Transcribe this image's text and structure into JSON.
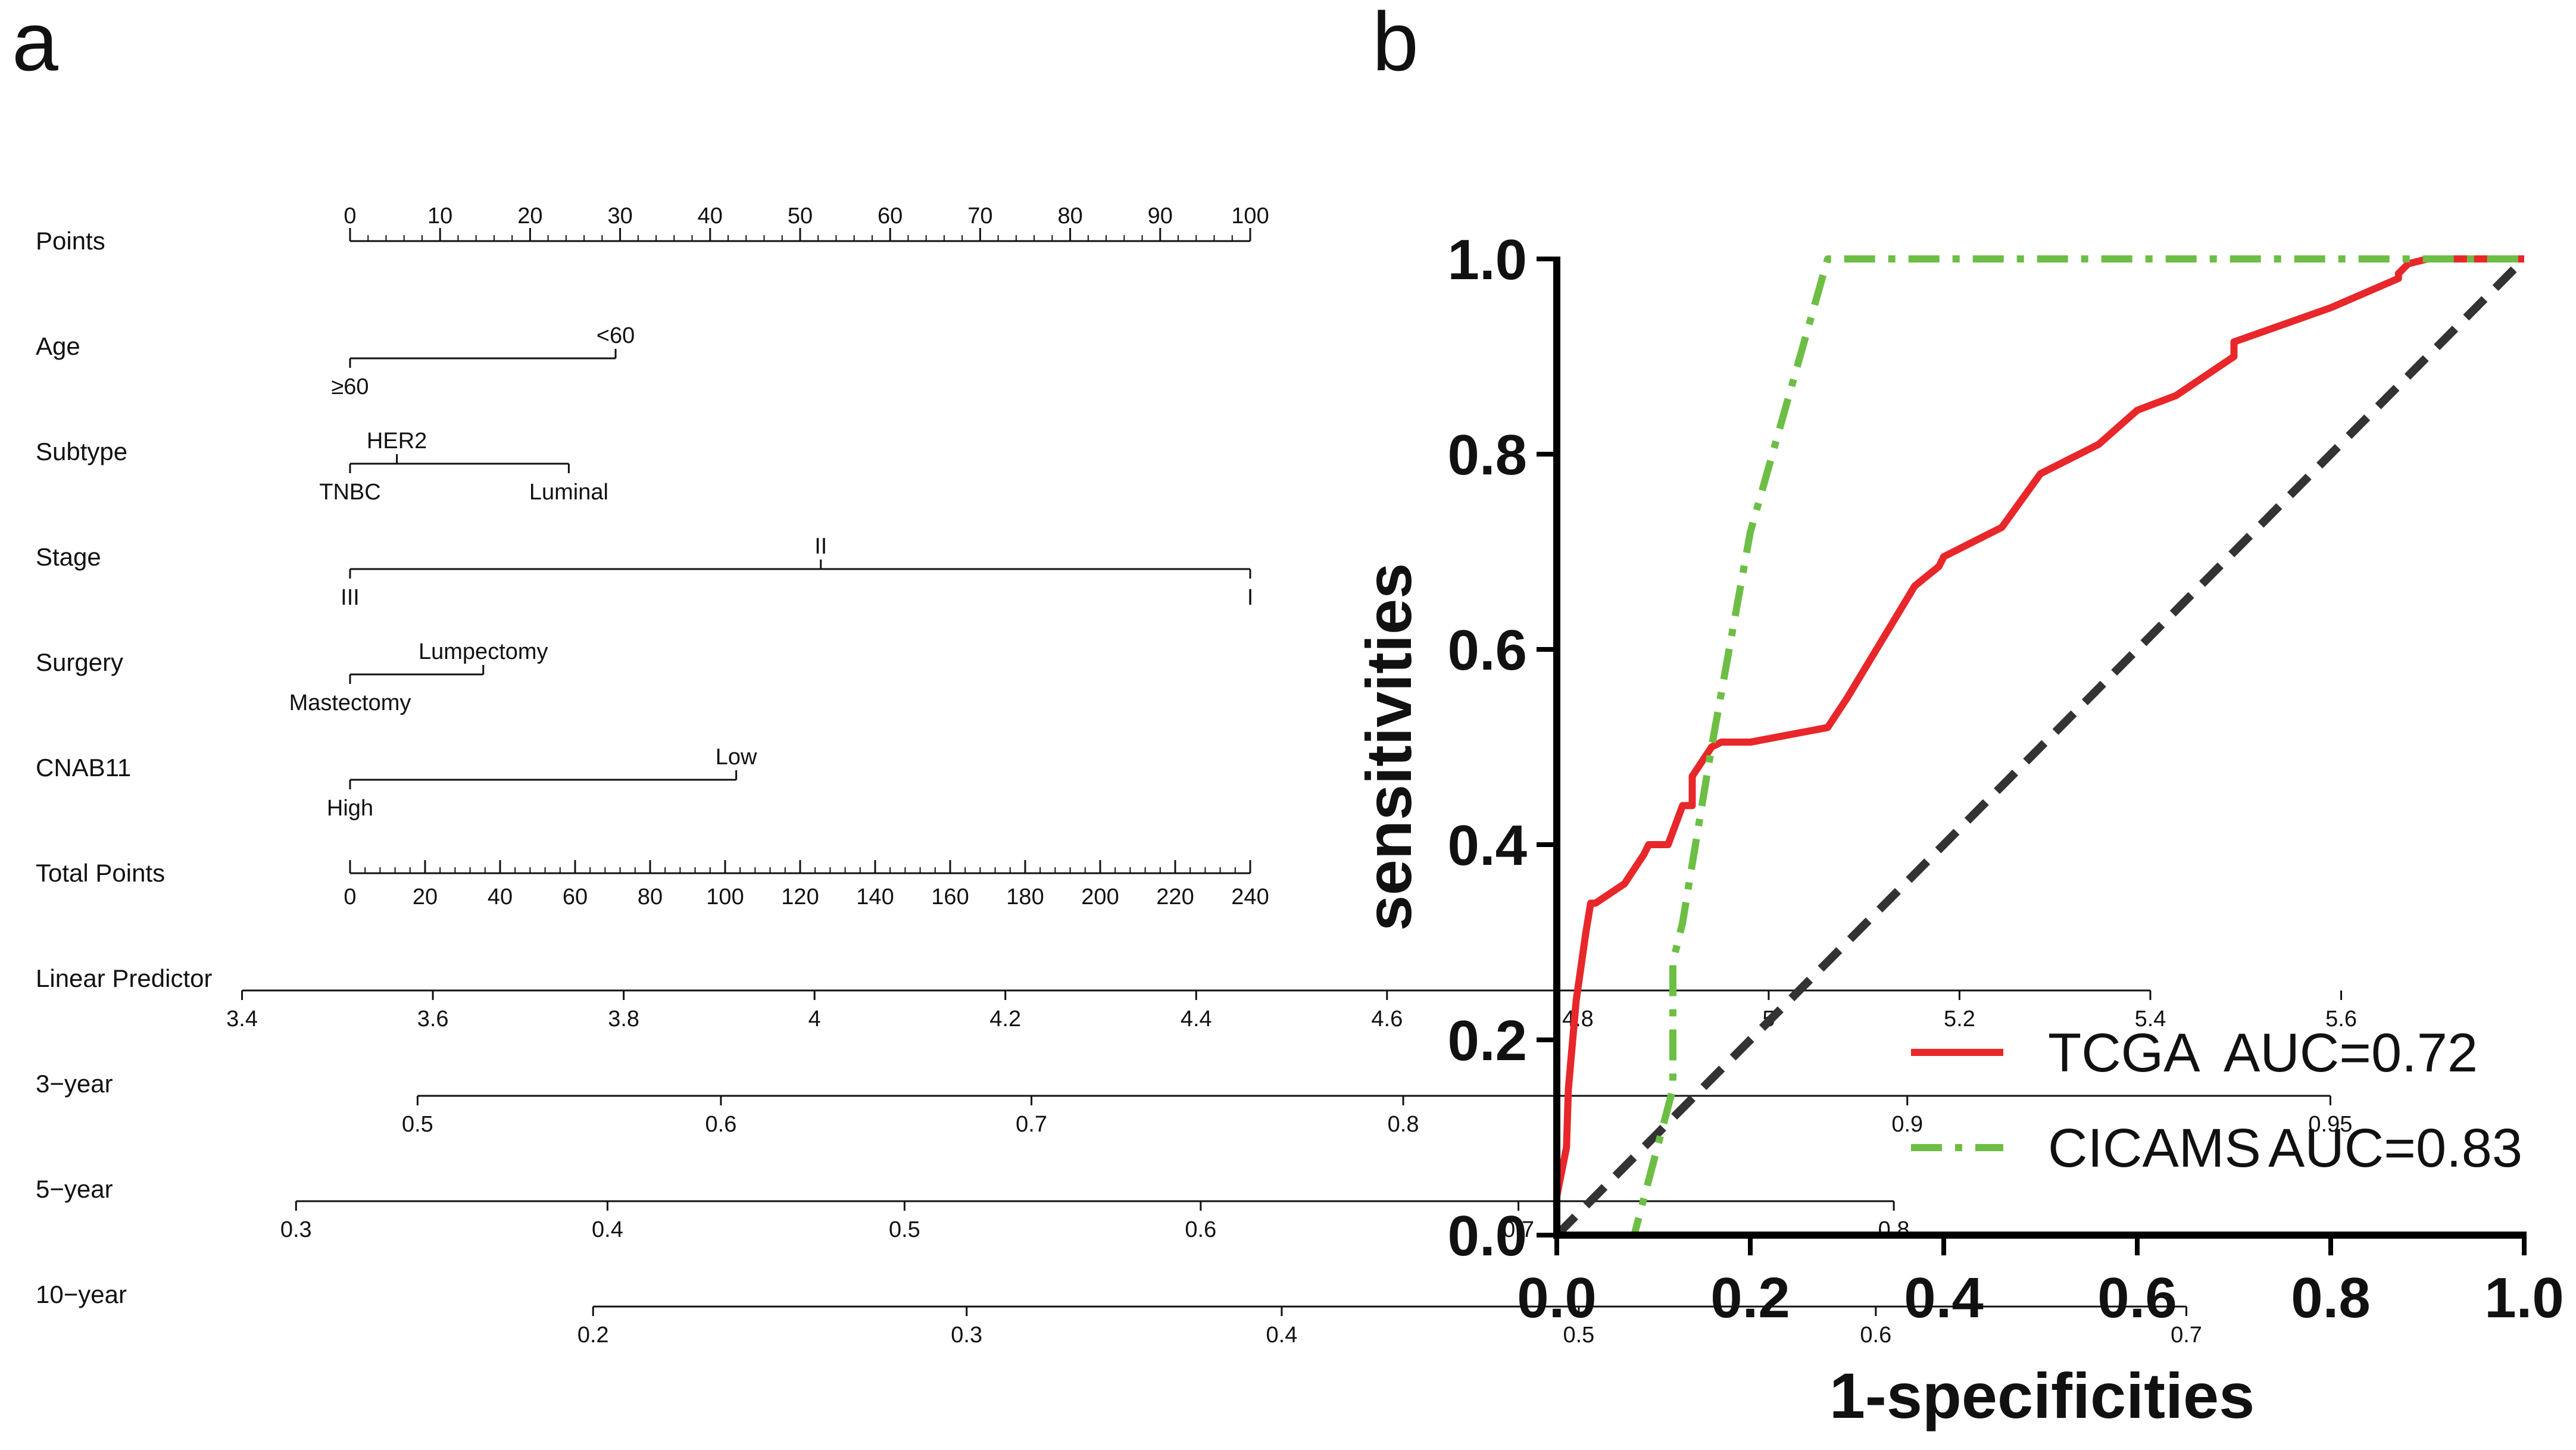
{
  "chart_data": [
    {
      "type": "nomogram",
      "panel_label": "a",
      "colors": {
        "line": "#111111",
        "text": "#111111"
      },
      "rows": [
        {
          "name": "Points",
          "kind": "axis",
          "range": [
            0,
            100
          ],
          "ticks": [
            "0",
            "10",
            "20",
            "30",
            "40",
            "50",
            "60",
            "70",
            "80",
            "90",
            "100"
          ],
          "tick_values": [
            0,
            10,
            20,
            30,
            40,
            50,
            60,
            70,
            80,
            90,
            100
          ],
          "minor_step": 2
        },
        {
          "name": "Age",
          "kind": "var",
          "range": [
            0,
            29.5
          ],
          "levels": [
            {
              "label": "≥60",
              "points": 0,
              "side": "below"
            },
            {
              "label": "<60",
              "points": 29.5,
              "side": "above"
            }
          ]
        },
        {
          "name": "Subtype",
          "kind": "var",
          "range": [
            0,
            24.3
          ],
          "levels": [
            {
              "label": "TNBC",
              "points": 0,
              "side": "below"
            },
            {
              "label": "HER2",
              "points": 5.2,
              "side": "above"
            },
            {
              "label": "Luminal",
              "points": 24.3,
              "side": "below"
            }
          ]
        },
        {
          "name": "Stage",
          "kind": "var",
          "range": [
            0,
            100
          ],
          "levels": [
            {
              "label": "III",
              "points": 0,
              "side": "below"
            },
            {
              "label": "II",
              "points": 52.3,
              "side": "above"
            },
            {
              "label": "I",
              "points": 100,
              "side": "below"
            }
          ]
        },
        {
          "name": "Surgery",
          "kind": "var",
          "range": [
            0,
            14.8
          ],
          "levels": [
            {
              "label": "Mastectomy",
              "points": 0,
              "side": "below"
            },
            {
              "label": "Lumpectomy",
              "points": 14.8,
              "side": "above"
            }
          ]
        },
        {
          "name": "CNAB11",
          "kind": "var",
          "range": [
            0,
            42.9
          ],
          "levels": [
            {
              "label": "High",
              "points": 0,
              "side": "below"
            },
            {
              "label": "Low",
              "points": 42.9,
              "side": "above"
            }
          ]
        },
        {
          "name": "Total Points",
          "kind": "axis",
          "range": [
            0,
            240
          ],
          "ticks": [
            "0",
            "20",
            "40",
            "60",
            "80",
            "100",
            "120",
            "140",
            "160",
            "180",
            "200",
            "220",
            "240"
          ],
          "tick_values": [
            0,
            20,
            40,
            60,
            80,
            100,
            120,
            140,
            160,
            180,
            200,
            220,
            240
          ],
          "minor_step": 4
        },
        {
          "name": "Linear Predictor",
          "kind": "scale",
          "domain_points": [
            -12,
            200
          ],
          "ticks": [
            "3.4",
            "3.6",
            "3.8",
            "4",
            "4.2",
            "4.4",
            "4.6",
            "4.8",
            "5",
            "5.2",
            "5.4",
            "5.6"
          ],
          "tick_points": [
            -12,
            9.2,
            30.4,
            51.6,
            72.8,
            94,
            115.2,
            136.4,
            157.6,
            178.8,
            200,
            221.2
          ]
        },
        {
          "name": "3−year",
          "kind": "scale",
          "domain_points": [
            7.5,
            220
          ],
          "ticks": [
            "0.5",
            "0.6",
            "0.7",
            "0.8",
            "0.9",
            "0.95"
          ],
          "tick_points": [
            7.5,
            41.2,
            75.7,
            117,
            173,
            220
          ]
        },
        {
          "name": "5−year",
          "kind": "scale",
          "domain_points": [
            -6,
            171.5
          ],
          "ticks": [
            "0.3",
            "0.4",
            "0.5",
            "0.6",
            "0.7",
            "0.8"
          ],
          "tick_points": [
            -6,
            28.6,
            61.6,
            94.5,
            129.8,
            171.5
          ]
        },
        {
          "name": "10−year",
          "kind": "scale",
          "domain_points": [
            27,
            204
          ],
          "ticks": [
            "0.2",
            "0.3",
            "0.4",
            "0.5",
            "0.6",
            "0.7"
          ],
          "tick_points": [
            27,
            68.5,
            103.5,
            136.5,
            169.5,
            204
          ]
        }
      ]
    },
    {
      "type": "line",
      "panel_label": "b",
      "xlabel": "1-specificities",
      "ylabel": "sensitivities",
      "xlim": [
        0,
        1
      ],
      "ylim": [
        0,
        1
      ],
      "xticks": [
        "0.0",
        "0.2",
        "0.4",
        "0.6",
        "0.8",
        "1.0"
      ],
      "yticks": [
        "0.0",
        "0.2",
        "0.4",
        "0.6",
        "0.8",
        "1.0"
      ],
      "legend_position": "bottom-right",
      "series": [
        {
          "name": "TCGA",
          "auc_label": "AUC=0.72",
          "color": "#e8272a",
          "dash": "solid",
          "x": [
            0,
            0,
            0.01,
            0.012,
            0.02,
            0.03,
            0.035,
            0.04,
            0.07,
            0.09,
            0.095,
            0.11,
            0.115,
            0.13,
            0.14,
            0.14,
            0.16,
            0.17,
            0.2,
            0.28,
            0.3,
            0.37,
            0.395,
            0.4,
            0.46,
            0.5,
            0.56,
            0.6,
            0.64,
            0.7,
            0.7,
            0.8,
            0.87,
            0.87,
            0.88,
            0.9,
            1.0
          ],
          "y": [
            0,
            0.04,
            0.09,
            0.15,
            0.24,
            0.31,
            0.34,
            0.34,
            0.36,
            0.39,
            0.4,
            0.4,
            0.4,
            0.44,
            0.44,
            0.47,
            0.5,
            0.505,
            0.505,
            0.52,
            0.55,
            0.665,
            0.685,
            0.695,
            0.725,
            0.78,
            0.81,
            0.845,
            0.86,
            0.9,
            0.915,
            0.95,
            0.98,
            0.985,
            0.995,
            1.0,
            1.0
          ]
        },
        {
          "name": "CICAMS",
          "auc_label": "AUC=0.83",
          "color": "#6dbe45",
          "dash": "dashdot",
          "x": [
            0,
            0.08,
            0.12,
            0.12,
            0.13,
            0.14,
            0.16,
            0.2,
            0.28,
            1.0
          ],
          "y": [
            0,
            0,
            0.15,
            0.28,
            0.32,
            0.38,
            0.5,
            0.72,
            1.0,
            1.0
          ]
        },
        {
          "name": "reference",
          "color": "#333333",
          "dash": "dashed",
          "x": [
            0,
            1
          ],
          "y": [
            0,
            1
          ]
        }
      ]
    }
  ]
}
